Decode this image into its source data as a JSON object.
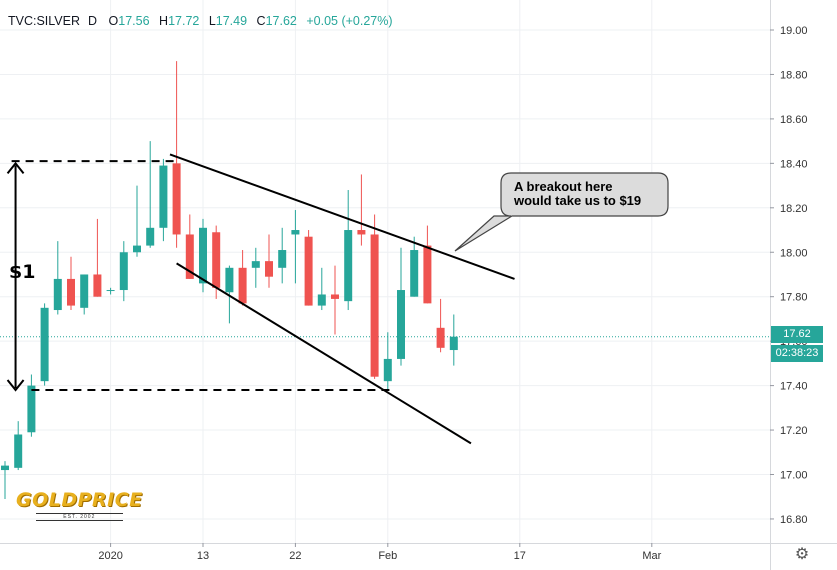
{
  "header": {
    "symbol": "TVC:SILVER",
    "interval": "D",
    "o_label": "O",
    "o_value": "17.56",
    "h_label": "H",
    "h_value": "17.72",
    "l_label": "L",
    "l_value": "17.49",
    "c_label": "C",
    "c_value": "17.62",
    "change": "+0.05 (+0.27%)"
  },
  "annotations": {
    "callout_line1": "A breakout here",
    "callout_line2": "would take us to $19",
    "range_label": "$1"
  },
  "price_tag": {
    "price": "17.62",
    "countdown": "02:38:23"
  },
  "logo": {
    "word": "GOLDPRICE",
    "est": "EST. 2002"
  },
  "colors": {
    "up": "#26a69a",
    "down": "#ef5350",
    "grid": "#eef0f3",
    "axis_text": "#333333",
    "tag": "#26a69a"
  },
  "icons": {
    "settings": "gear-icon"
  },
  "chart_data": {
    "type": "candlestick",
    "y_ticks": [
      "16.80",
      "17.00",
      "17.20",
      "17.40",
      "17.60",
      "17.80",
      "18.00",
      "18.20",
      "18.40",
      "18.60",
      "18.80",
      "19.00"
    ],
    "ylim": [
      16.7,
      19.1
    ],
    "x_ticks": [
      {
        "label": "2020",
        "bar": 8
      },
      {
        "label": "13",
        "bar": 15
      },
      {
        "label": "22",
        "bar": 22
      },
      {
        "label": "Feb",
        "bar": 29
      },
      {
        "label": "17",
        "bar": 39
      },
      {
        "label": "Mar",
        "bar": 49
      }
    ],
    "candles": [
      {
        "o": 17.02,
        "h": 17.06,
        "l": 16.89,
        "c": 17.04
      },
      {
        "o": 17.03,
        "h": 17.24,
        "l": 17.02,
        "c": 17.18
      },
      {
        "o": 17.19,
        "h": 17.45,
        "l": 17.17,
        "c": 17.4
      },
      {
        "o": 17.42,
        "h": 17.77,
        "l": 17.4,
        "c": 17.75
      },
      {
        "o": 17.74,
        "h": 18.05,
        "l": 17.72,
        "c": 17.88
      },
      {
        "o": 17.88,
        "h": 17.98,
        "l": 17.74,
        "c": 17.76
      },
      {
        "o": 17.75,
        "h": 17.9,
        "l": 17.72,
        "c": 17.9
      },
      {
        "o": 17.9,
        "h": 18.15,
        "l": 17.8,
        "c": 17.8
      },
      {
        "o": 17.83,
        "h": 17.84,
        "l": 17.81,
        "c": 17.83
      },
      {
        "o": 17.83,
        "h": 18.05,
        "l": 17.78,
        "c": 18.0
      },
      {
        "o": 18.0,
        "h": 18.3,
        "l": 17.98,
        "c": 18.03
      },
      {
        "o": 18.03,
        "h": 18.5,
        "l": 18.02,
        "c": 18.11
      },
      {
        "o": 18.11,
        "h": 18.42,
        "l": 18.05,
        "c": 18.39
      },
      {
        "o": 18.4,
        "h": 18.86,
        "l": 18.02,
        "c": 18.08
      },
      {
        "o": 18.08,
        "h": 18.17,
        "l": 17.88,
        "c": 17.88
      },
      {
        "o": 17.86,
        "h": 18.15,
        "l": 17.82,
        "c": 18.11
      },
      {
        "o": 18.09,
        "h": 18.12,
        "l": 17.79,
        "c": 17.84
      },
      {
        "o": 17.82,
        "h": 17.94,
        "l": 17.68,
        "c": 17.93
      },
      {
        "o": 17.93,
        "h": 18.01,
        "l": 17.76,
        "c": 17.77
      },
      {
        "o": 17.93,
        "h": 18.02,
        "l": 17.84,
        "c": 17.96
      },
      {
        "o": 17.96,
        "h": 18.08,
        "l": 17.84,
        "c": 17.89
      },
      {
        "o": 17.93,
        "h": 18.11,
        "l": 17.86,
        "c": 18.01
      },
      {
        "o": 18.08,
        "h": 18.19,
        "l": 17.86,
        "c": 18.1
      },
      {
        "o": 18.07,
        "h": 18.1,
        "l": 17.76,
        "c": 17.76
      },
      {
        "o": 17.76,
        "h": 17.93,
        "l": 17.74,
        "c": 17.81
      },
      {
        "o": 17.81,
        "h": 17.94,
        "l": 17.63,
        "c": 17.79
      },
      {
        "o": 17.78,
        "h": 18.28,
        "l": 17.74,
        "c": 18.1
      },
      {
        "o": 18.1,
        "h": 18.35,
        "l": 18.03,
        "c": 18.08
      },
      {
        "o": 18.08,
        "h": 18.17,
        "l": 17.43,
        "c": 17.44
      },
      {
        "o": 17.42,
        "h": 17.64,
        "l": 17.38,
        "c": 17.52
      },
      {
        "o": 17.52,
        "h": 18.02,
        "l": 17.49,
        "c": 17.83
      },
      {
        "o": 17.8,
        "h": 18.07,
        "l": 17.8,
        "c": 18.01
      },
      {
        "o": 18.03,
        "h": 18.12,
        "l": 17.77,
        "c": 17.77
      },
      {
        "o": 17.66,
        "h": 17.79,
        "l": 17.55,
        "c": 17.57
      },
      {
        "o": 17.56,
        "h": 17.72,
        "l": 17.49,
        "c": 17.62
      }
    ],
    "last_price": 17.62,
    "trendlines": [
      {
        "from": {
          "bar": 12.5,
          "y": 18.44
        },
        "to": {
          "bar": 38.6,
          "y": 17.88
        }
      },
      {
        "from": {
          "bar": 13.0,
          "y": 17.95
        },
        "to": {
          "bar": 35.3,
          "y": 17.14
        }
      }
    ],
    "range_lines": [
      {
        "y": 18.41,
        "from_bar": 0.5,
        "to_bar": 13.0
      },
      {
        "y": 17.38,
        "from_bar": 2.0,
        "to_bar": 29.5
      }
    ],
    "range_arrow": {
      "bar": 0.8,
      "top": 18.4,
      "bottom": 17.38
    }
  }
}
